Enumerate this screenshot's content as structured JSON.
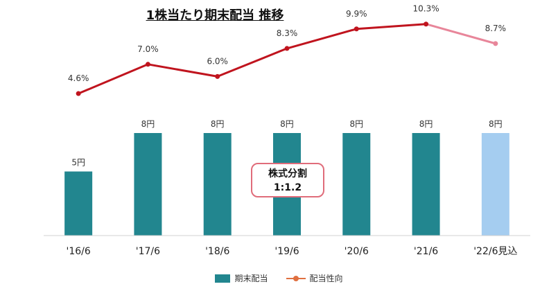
{
  "chart_data": {
    "type": "bar",
    "title": "1株当たり期末配当 推移",
    "categories": [
      "'16/6",
      "'17/6",
      "'18/6",
      "'19/6",
      "'20/6",
      "'21/6",
      "'22/6見込"
    ],
    "bar_series": {
      "name": "期末配当",
      "values": [
        5,
        8,
        8,
        8,
        8,
        8,
        8
      ],
      "labels": [
        "5円",
        "8円",
        "8円",
        "8円",
        "8円",
        "8円",
        "8円"
      ],
      "colors": [
        "#22868f",
        "#22868f",
        "#22868f",
        "#22868f",
        "#22868f",
        "#22868f",
        "#a5cdf0"
      ]
    },
    "line_series": {
      "name": "配当性向",
      "values": [
        4.6,
        7.0,
        6.0,
        8.3,
        9.9,
        10.3,
        8.7
      ],
      "labels": [
        "4.6%",
        "7.0%",
        "6.0%",
        "8.3%",
        "9.9%",
        "10.3%",
        "8.7%"
      ],
      "color": "#c0141e",
      "forecast_color": "#e8869a"
    },
    "annotation": {
      "line1": "株式分割",
      "line2": "1:1.2"
    },
    "grid": false,
    "legend_position": "bottom"
  }
}
